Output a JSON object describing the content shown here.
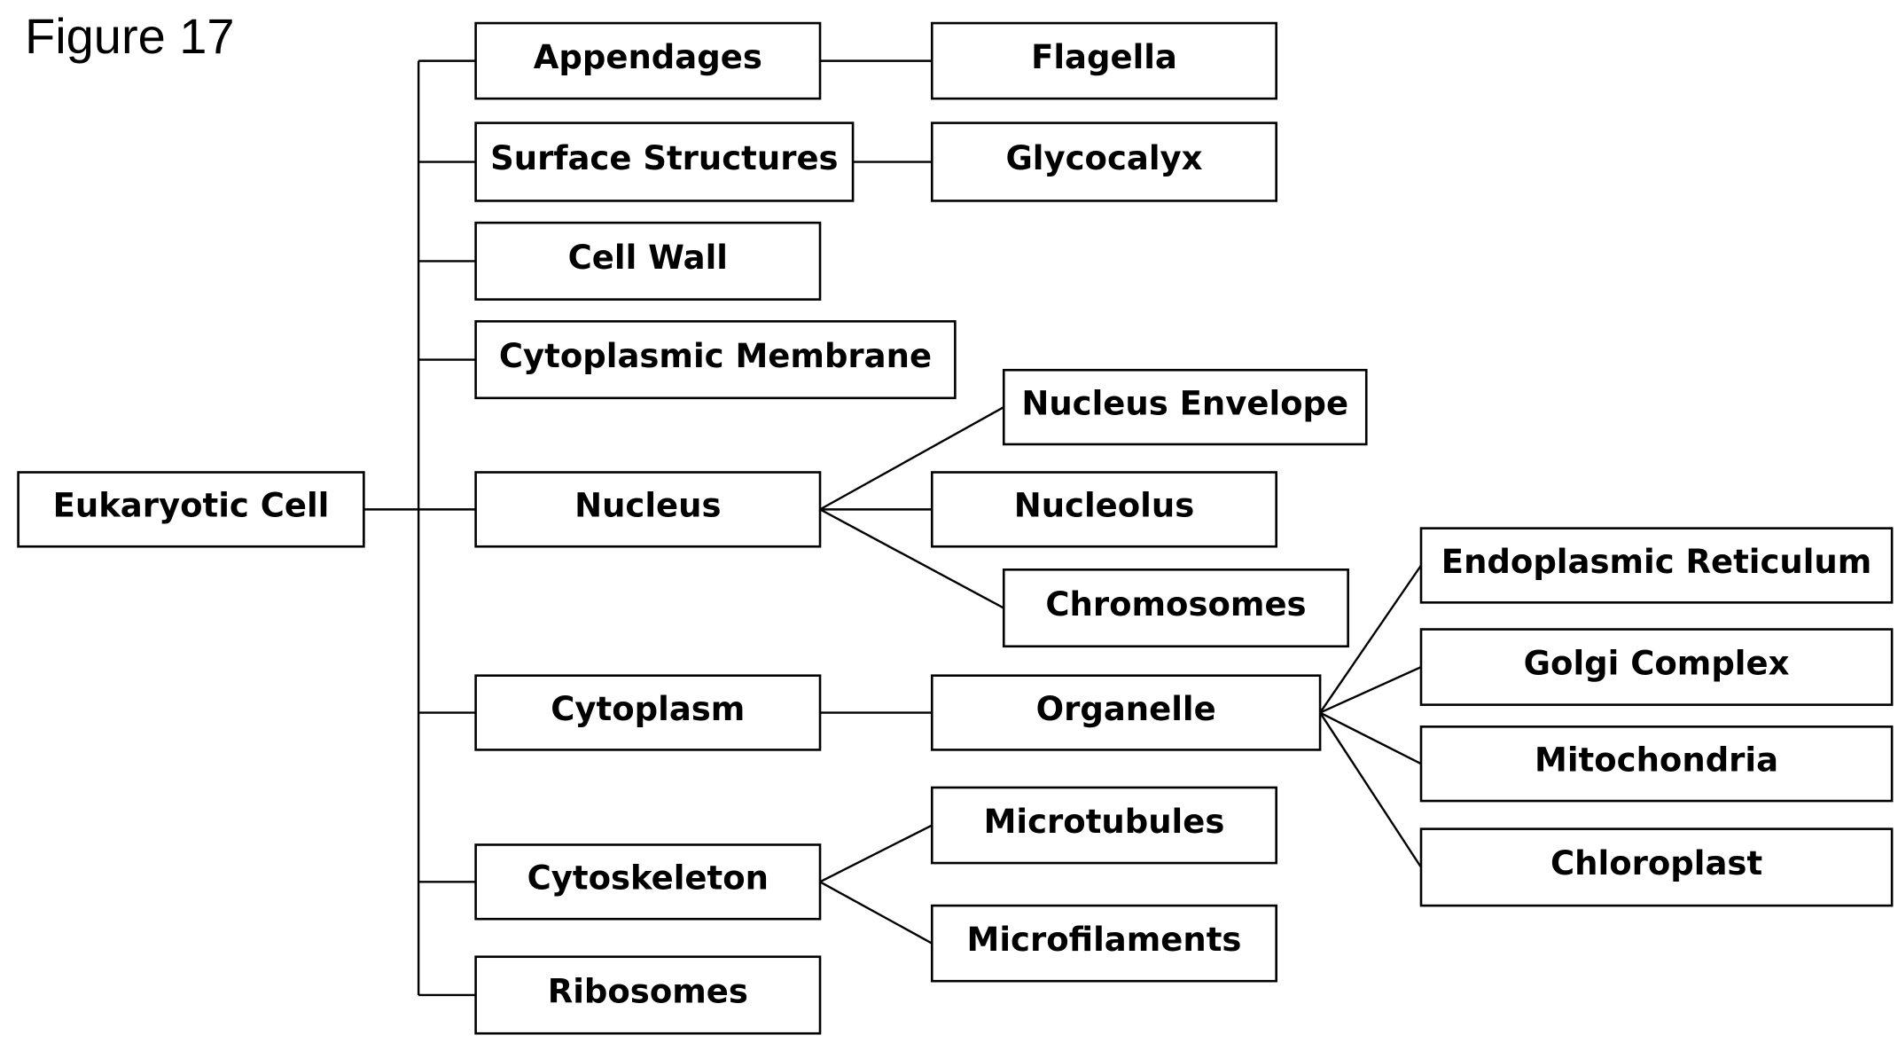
{
  "figure_label": "Figure 17",
  "nodes": [
    {
      "id": "eukaryotic-cell",
      "label": "Eukaryotic Cell"
    },
    {
      "id": "appendages",
      "label": "Appendages"
    },
    {
      "id": "surface-structures",
      "label": "Surface Structures"
    },
    {
      "id": "cell-wall",
      "label": "Cell Wall"
    },
    {
      "id": "cytoplasmic-membrane",
      "label": "Cytoplasmic Membrane"
    },
    {
      "id": "nucleus",
      "label": "Nucleus"
    },
    {
      "id": "cytoplasm",
      "label": "Cytoplasm"
    },
    {
      "id": "cytoskeleton",
      "label": "Cytoskeleton"
    },
    {
      "id": "ribosomes",
      "label": "Ribosomes"
    },
    {
      "id": "flagella",
      "label": "Flagella"
    },
    {
      "id": "glycocalyx",
      "label": "Glycocalyx"
    },
    {
      "id": "nucleus-envelope",
      "label": "Nucleus Envelope"
    },
    {
      "id": "nucleolus",
      "label": "Nucleolus"
    },
    {
      "id": "chromosomes",
      "label": "Chromosomes"
    },
    {
      "id": "organelle",
      "label": "Organelle"
    },
    {
      "id": "microtubules",
      "label": "Microtubules"
    },
    {
      "id": "microfilaments",
      "label": "Microfilaments"
    },
    {
      "id": "endoplasmic-reticulum",
      "label": "Endoplasmic Reticulum"
    },
    {
      "id": "golgi-complex",
      "label": "Golgi Complex"
    },
    {
      "id": "mitochondria",
      "label": "Mitochondria"
    },
    {
      "id": "chloroplast",
      "label": "Chloroplast"
    }
  ],
  "edges": [
    [
      "eukaryotic-cell",
      "appendages"
    ],
    [
      "eukaryotic-cell",
      "surface-structures"
    ],
    [
      "eukaryotic-cell",
      "cell-wall"
    ],
    [
      "eukaryotic-cell",
      "cytoplasmic-membrane"
    ],
    [
      "eukaryotic-cell",
      "nucleus"
    ],
    [
      "eukaryotic-cell",
      "cytoplasm"
    ],
    [
      "eukaryotic-cell",
      "cytoskeleton"
    ],
    [
      "eukaryotic-cell",
      "ribosomes"
    ],
    [
      "appendages",
      "flagella"
    ],
    [
      "surface-structures",
      "glycocalyx"
    ],
    [
      "nucleus",
      "nucleus-envelope"
    ],
    [
      "nucleus",
      "nucleolus"
    ],
    [
      "nucleus",
      "chromosomes"
    ],
    [
      "cytoplasm",
      "organelle"
    ],
    [
      "cytoskeleton",
      "microtubules"
    ],
    [
      "cytoskeleton",
      "microfilaments"
    ],
    [
      "organelle",
      "endoplasmic-reticulum"
    ],
    [
      "organelle",
      "golgi-complex"
    ],
    [
      "organelle",
      "mitochondria"
    ],
    [
      "organelle",
      "chloroplast"
    ]
  ],
  "colors": {
    "stroke": "#000000",
    "box_fill": "#ffffff",
    "text": "#000000"
  }
}
